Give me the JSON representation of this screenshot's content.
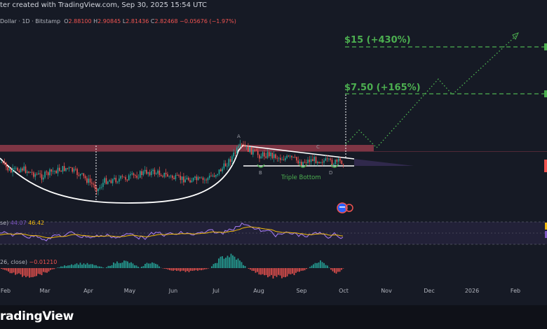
{
  "header": {
    "text": "ter created with TradingView.com, Sep 30, 2025 15:54 UTC"
  },
  "symbol": {
    "name": "Dollar · 1D · Bitstamp",
    "o_label": "O",
    "o_value": "2.88100",
    "h_label": "H",
    "h_value": "2.90845",
    "l_label": "L",
    "l_value": "2.81436",
    "c_label": "C",
    "c_value": "2.82468",
    "change": "−0.05676 (−1.97%)"
  },
  "rsi": {
    "name": "se)",
    "v1": "44.07",
    "v2": "46.42"
  },
  "macd": {
    "name": "26, close)",
    "v1": "−0.01210"
  },
  "brand": {
    "name": "radingView"
  },
  "colors": {
    "background": "#161a25",
    "bull": "#26a69a",
    "bear": "#ef5350",
    "target": "#4caf50",
    "resistance": "#d64c5f",
    "rsi": "#7e57c2",
    "rsi_ma": "#f0b90b"
  },
  "chart_data": {
    "type": "candlestick",
    "x_ticks": [
      "Feb",
      "Mar",
      "Apr",
      "May",
      "Jun",
      "Jul",
      "Aug",
      "Sep",
      "Oct",
      "Nov",
      "Dec",
      "2026",
      "Feb"
    ],
    "targets": [
      {
        "label": "$15 (+430%)",
        "value": 15
      },
      {
        "label": "$7.50 (+165%)",
        "value": 7.5
      }
    ],
    "pattern_labels": [
      "A",
      "B",
      "C",
      "D"
    ],
    "pattern_name": "Triple Bottom",
    "last_close": 2.82468,
    "grid": false
  }
}
